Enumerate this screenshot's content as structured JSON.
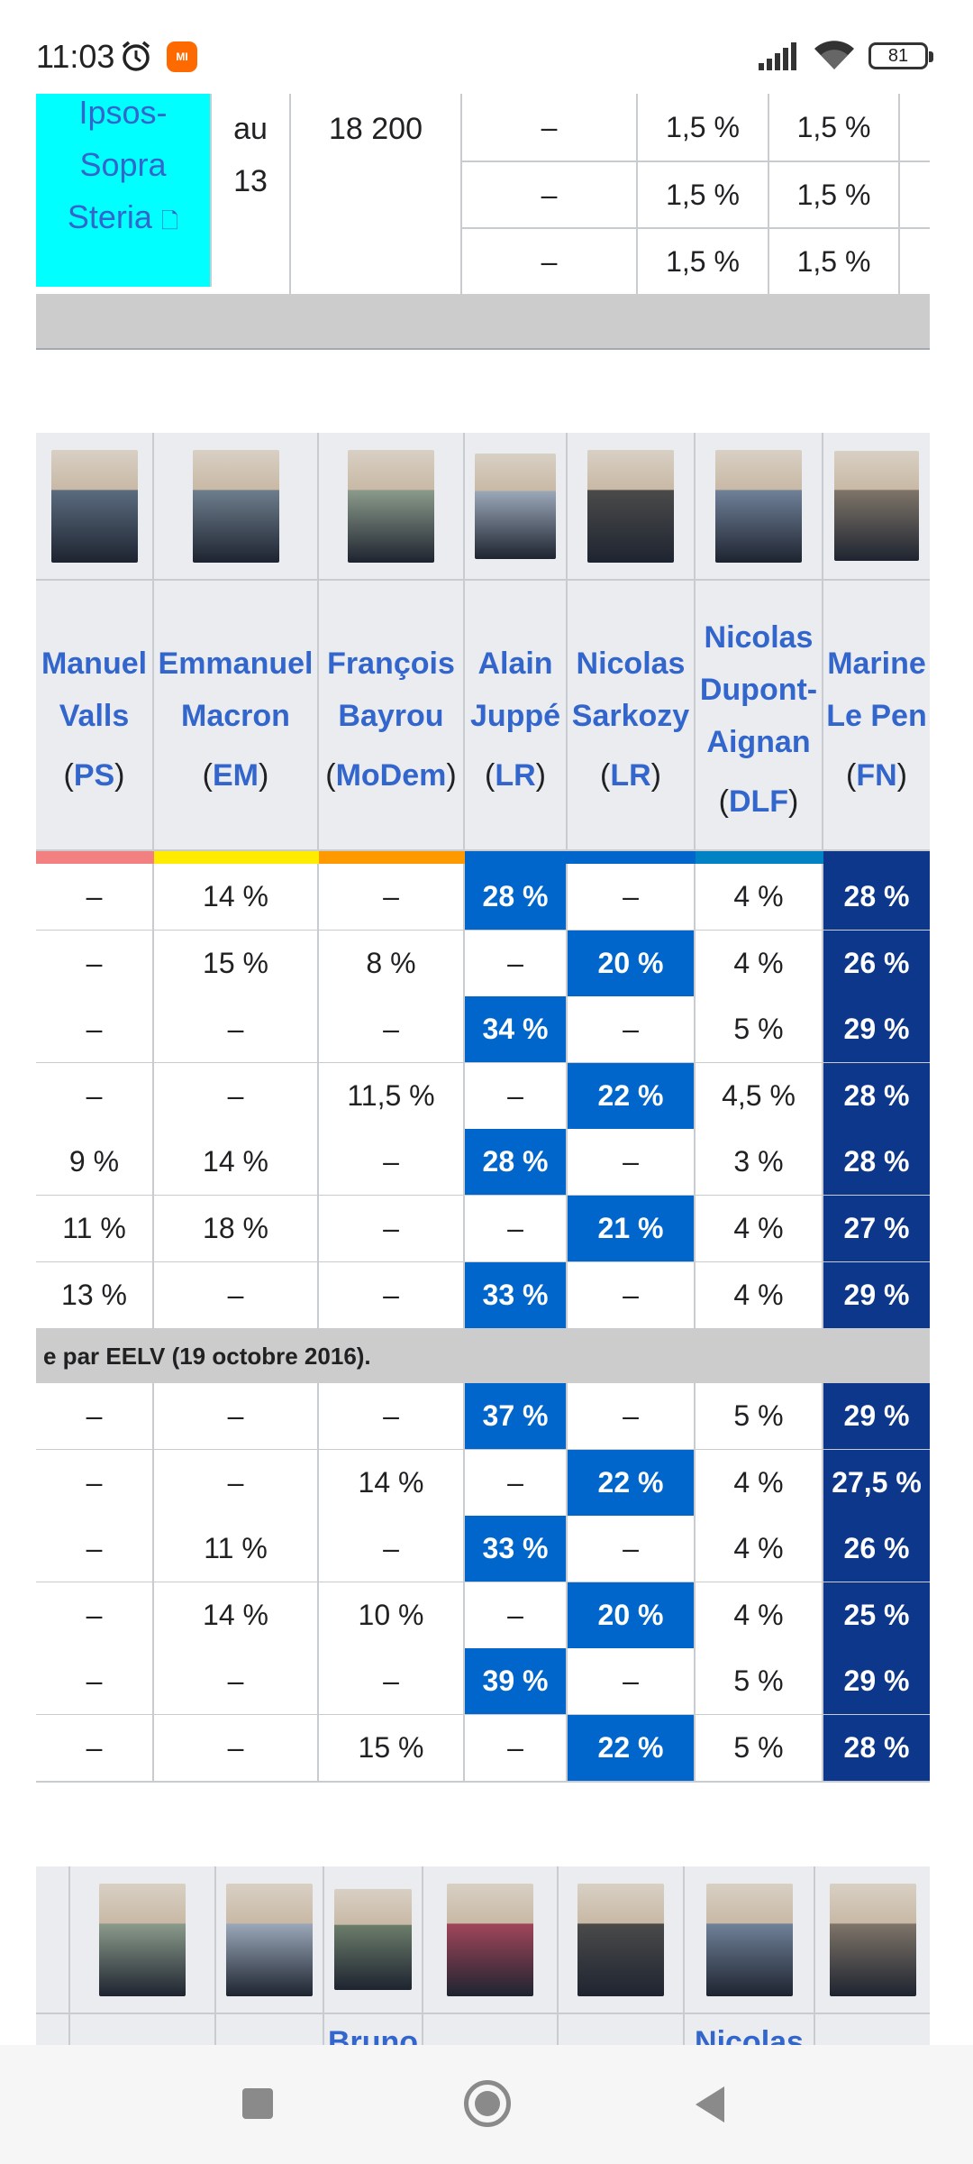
{
  "status_bar": {
    "time": "11:03",
    "battery": "81",
    "mi_label": "MI"
  },
  "top_table": {
    "institute_lines": [
      "Ipsos-",
      "Sopra",
      "Steria"
    ],
    "date_lines": [
      "au",
      "13"
    ],
    "sample": "18 200",
    "rows": [
      [
        "–",
        "1,5 %",
        "1,5 %"
      ],
      [
        "–",
        "1,5 %",
        "1,5 %"
      ],
      [
        "–",
        "1,5 %",
        "1,5 %"
      ]
    ]
  },
  "candidates": [
    {
      "first": "Manuel",
      "last": "Valls",
      "party": "PS",
      "color": "#f28080"
    },
    {
      "first": "Emmanuel",
      "last": "Macron",
      "party": "EM",
      "color": "#ffeb00"
    },
    {
      "first": "François",
      "last": "Bayrou",
      "party": "MoDem",
      "color": "#ff9900"
    },
    {
      "first": "Alain",
      "last": "Juppé",
      "party": "LR",
      "color": "#0066cc"
    },
    {
      "first": "Nicolas",
      "last": "Sarkozy",
      "party": "LR",
      "color": "#0066cc"
    },
    {
      "first": "Nicolas",
      "last": "Dupont-Aignan",
      "party": "DLF",
      "color": "#0082c4"
    },
    {
      "first": "Marine",
      "last": "Le Pen",
      "party": "FN",
      "color": "#0d378a"
    }
  ],
  "name_lines": [
    [
      "Manuel",
      "Valls"
    ],
    [
      "Emmanuel",
      "Macron"
    ],
    [
      "François",
      "Bayrou"
    ],
    [
      "Alain",
      "Juppé"
    ],
    [
      "Nicolas",
      "Sarkozy"
    ],
    [
      "Nicolas",
      "Dupont-",
      "Aignan"
    ],
    [
      "Marine",
      "Le Pen"
    ]
  ],
  "rows_a": [
    [
      "–",
      "14 %",
      "–",
      "28 %",
      "–",
      "4 %",
      "28 %"
    ],
    [
      "–",
      "15 %",
      "8 %",
      "–",
      "20 %",
      "4 %",
      "26 %"
    ],
    [
      "–",
      "–",
      "–",
      "34 %",
      "–",
      "5 %",
      "29 %"
    ],
    [
      "–",
      "–",
      "11,5 %",
      "–",
      "22 %",
      "4,5 %",
      "28 %"
    ],
    [
      "9 %",
      "14 %",
      "–",
      "28 %",
      "–",
      "3 %",
      "28 %"
    ],
    [
      "11 %",
      "18 %",
      "–",
      "–",
      "21 %",
      "4 %",
      "27 %"
    ],
    [
      "13 %",
      "–",
      "–",
      "33 %",
      "–",
      "4 %",
      "29 %"
    ]
  ],
  "note": "e par EELV (19 octobre 2016).",
  "rows_b": [
    [
      "–",
      "–",
      "–",
      "37 %",
      "–",
      "5 %",
      "29 %"
    ],
    [
      "–",
      "–",
      "14 %",
      "–",
      "22 %",
      "4 %",
      "27,5 %"
    ],
    [
      "–",
      "11 %",
      "–",
      "33 %",
      "–",
      "4 %",
      "26 %"
    ],
    [
      "–",
      "14 %",
      "10 %",
      "–",
      "20 %",
      "4 %",
      "25 %"
    ],
    [
      "–",
      "–",
      "–",
      "39 %",
      "–",
      "5 %",
      "29 %"
    ],
    [
      "–",
      "–",
      "15 %",
      "–",
      "22 %",
      "5 %",
      "28 %"
    ]
  ],
  "bottom_header_partial": [
    "Bruno",
    "Nicolas"
  ]
}
